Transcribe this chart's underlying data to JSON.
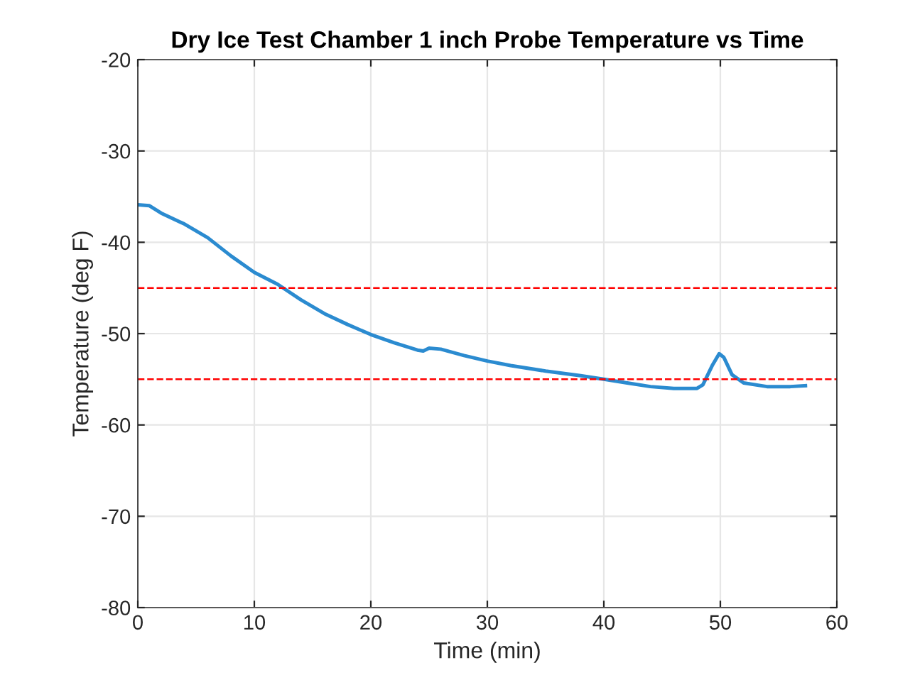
{
  "chart_data": {
    "type": "line",
    "title": "Dry Ice Test Chamber 1 inch Probe Temperature vs Time",
    "xlabel": "Time (min)",
    "ylabel": "Temperature (deg F)",
    "x": [
      0,
      1,
      2,
      4,
      6,
      8,
      10,
      12,
      14,
      16,
      18,
      20,
      22,
      24,
      24.5,
      25,
      26,
      28,
      30,
      32,
      35,
      38,
      40,
      42,
      44,
      46,
      48,
      48.5,
      49.3,
      49.9,
      50.3,
      51,
      52,
      54,
      56,
      57.3
    ],
    "series": [
      {
        "color": "#2b8bd0",
        "values": [
          -35.9,
          -36.0,
          -36.8,
          -38.0,
          -39.5,
          -41.5,
          -43.3,
          -44.6,
          -46.3,
          -47.8,
          -49.0,
          -50.1,
          -51.0,
          -51.8,
          -51.9,
          -51.6,
          -51.7,
          -52.4,
          -53.0,
          -53.5,
          -54.1,
          -54.6,
          -55.0,
          -55.4,
          -55.8,
          -56.0,
          -56.0,
          -55.6,
          -53.5,
          -52.2,
          -52.6,
          -54.5,
          -55.4,
          -55.8,
          -55.8,
          -55.7
        ]
      }
    ],
    "xlim": [
      0,
      60
    ],
    "xticks": [
      0,
      10,
      20,
      30,
      40,
      50,
      60
    ],
    "ylim": [
      -80,
      -20
    ],
    "yticks": [
      -80,
      -70,
      -60,
      -50,
      -40,
      -30,
      -20
    ],
    "ref_lines": [
      {
        "axis": "y",
        "value": -45,
        "color": "#ff0000",
        "line_style": "dashed"
      },
      {
        "axis": "y",
        "value": -55,
        "color": "#ff0000",
        "line_style": "dashed"
      }
    ],
    "grid": true,
    "line_style": "solid",
    "marker": "none"
  }
}
